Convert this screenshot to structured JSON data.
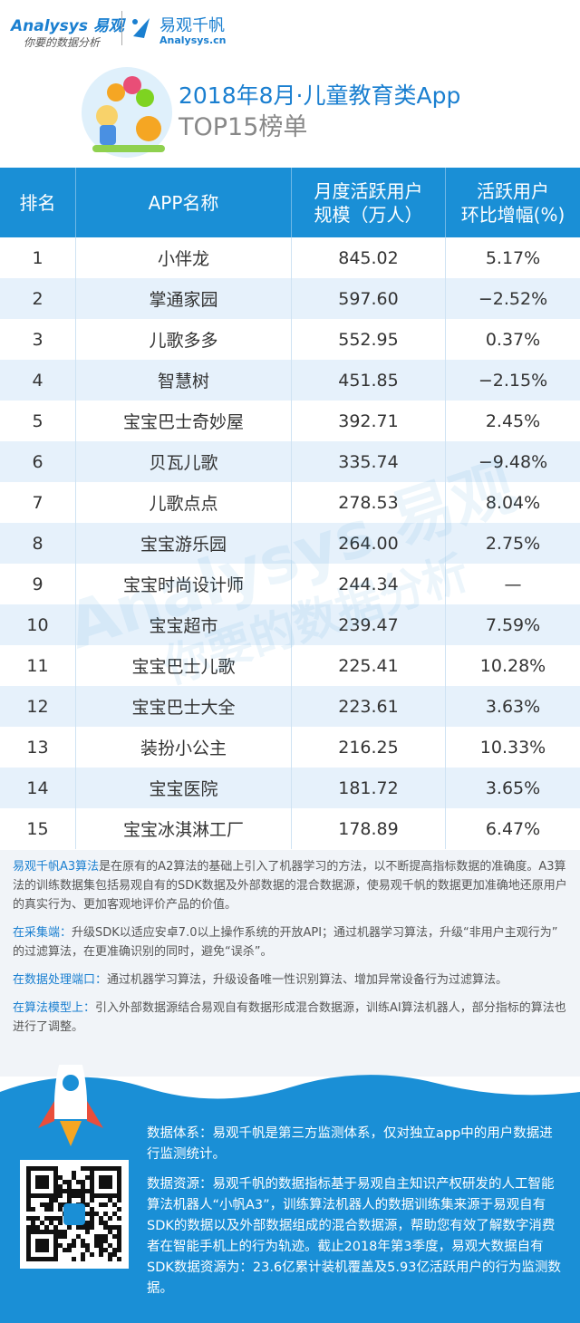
{
  "header": {
    "logo": "Analysys",
    "logo_cn": "易观",
    "slogan": "你要的数据分析",
    "product": "易观千帆",
    "product_url": "Analysys.cn",
    "title": "2018年8月·儿童教育类App",
    "subtitle": "TOP15榜单"
  },
  "table": {
    "headers": [
      [
        "排名"
      ],
      [
        "APP名称"
      ],
      [
        "月度活跃用户",
        "规模（万人）"
      ],
      [
        "活跃用户",
        "环比增幅(%)"
      ]
    ],
    "rows": [
      [
        "1",
        "小伴龙",
        "845.02",
        "5.17%"
      ],
      [
        "2",
        "掌通家园",
        "597.60",
        "−2.52%"
      ],
      [
        "3",
        "儿歌多多",
        "552.95",
        "0.37%"
      ],
      [
        "4",
        "智慧树",
        "451.85",
        "−2.15%"
      ],
      [
        "5",
        "宝宝巴士奇妙屋",
        "392.71",
        "2.45%"
      ],
      [
        "6",
        "贝瓦儿歌",
        "335.74",
        "−9.48%"
      ],
      [
        "7",
        "儿歌点点",
        "278.53",
        "8.04%"
      ],
      [
        "8",
        "宝宝游乐园",
        "264.00",
        "2.75%"
      ],
      [
        "9",
        "宝宝时尚设计师",
        "244.34",
        "—"
      ],
      [
        "10",
        "宝宝超市",
        "239.47",
        "7.59%"
      ],
      [
        "11",
        "宝宝巴士儿歌",
        "225.41",
        "10.28%"
      ],
      [
        "12",
        "宝宝巴士大全",
        "223.61",
        "3.63%"
      ],
      [
        "13",
        "装扮小公主",
        "216.25",
        "10.33%"
      ],
      [
        "14",
        "宝宝医院",
        "181.72",
        "3.65%"
      ],
      [
        "15",
        "宝宝冰淇淋工厂",
        "178.89",
        "6.47%"
      ]
    ]
  },
  "watermark": {
    "brand": "Analysys 易观",
    "slogan": "你要的数据分析"
  },
  "notes": [
    {
      "lead": "易观千帆A3算法",
      "text": "是在原有的A2算法的基础上引入了机器学习的方法，以不断提高指标数据的准确度。A3算法的训练数据集包括易观自有的SDK数据及外部数据的混合数据源，使易观千帆的数据更加准确地还原用户的真实行为、更加客观地评价产品的价值。"
    },
    {
      "lead": "在采集端：",
      "text": "升级SDK以适应安卓7.0以上操作系统的开放API；通过机器学习算法，升级“非用户主观行为”的过滤算法，在更准确识别的同时，避免“误杀”。"
    },
    {
      "lead": "在数据处理端口：",
      "text": "通过机器学习算法，升级设备唯一性识别算法、增加异常设备行为过滤算法。"
    },
    {
      "lead": "在算法模型上：",
      "text": "引入外部数据源结合易观自有数据形成混合数据源，训练AI算法机器人，部分指标的算法也进行了调整。"
    }
  ],
  "footer": [
    "数据体系：易观千帆是第三方监测体系，仅对独立app中的用户数据进行监测统计。",
    "数据资源：易观千帆的数据指标基于易观自主知识产权研发的人工智能算法机器人“小帆A3”，训练算法机器人的数据训练集来源于易观自有SDK的数据以及外部数据组成的混合数据源，帮助您有效了解数字消费者在智能手机上的行为轨迹。截止2018年第3季度，易观大数据自有SDK数据资源为：23.6亿累计装机覆盖及5.93亿活跃用户的行为监测数据。"
  ]
}
